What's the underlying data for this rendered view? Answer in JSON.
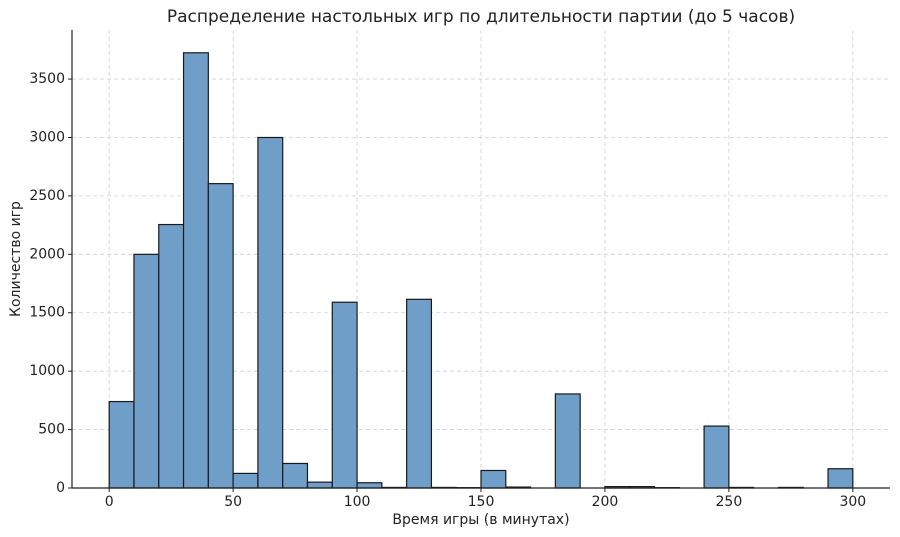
{
  "chart_data": {
    "type": "histogram",
    "title": "Распределение настольных игр по длительности партии (до 5 часов)",
    "x_label": "Время игры (в минутах)",
    "y_label": "Количество игр",
    "bins": [
      0,
      10,
      20,
      30,
      40,
      50,
      60,
      70,
      80,
      90,
      100,
      110,
      120,
      130,
      140,
      150,
      160,
      170,
      180,
      190,
      200,
      210,
      220,
      230,
      240,
      250,
      260,
      270,
      280,
      290,
      300
    ],
    "counts": [
      740,
      2000,
      2255,
      3725,
      2605,
      125,
      3000,
      210,
      50,
      1590,
      45,
      5,
      1615,
      5,
      3,
      150,
      8,
      0,
      805,
      0,
      12,
      12,
      3,
      0,
      530,
      5,
      0,
      5,
      0,
      165
    ],
    "color": "#6f9fc8",
    "edgecolor": "#1a1a1a",
    "xlim": [
      -15,
      315
    ],
    "ylim": [
      0,
      3920
    ],
    "xticks": [
      0,
      50,
      100,
      150,
      200,
      250,
      300
    ],
    "yticks": [
      0,
      500,
      1000,
      1500,
      2000,
      2500,
      3000,
      3500
    ],
    "grid": true
  }
}
